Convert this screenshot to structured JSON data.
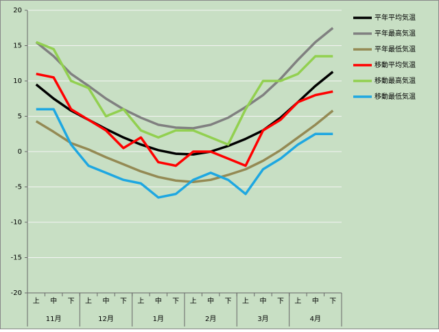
{
  "chart_data": {
    "type": "line",
    "categories": [
      "上",
      "中",
      "下",
      "上",
      "中",
      "下",
      "上",
      "中",
      "下",
      "上",
      "中",
      "下",
      "上",
      "中",
      "下",
      "上",
      "中",
      "下"
    ],
    "groups": [
      "11月",
      "12月",
      "1月",
      "2月",
      "3月",
      "4月"
    ],
    "ylim": [
      -20,
      20
    ],
    "yticks": [
      -20,
      -15,
      -10,
      -5,
      0,
      5,
      10,
      15,
      20
    ],
    "grid": true,
    "legend": "right",
    "series": [
      {
        "name": "平年平均気温",
        "color": "#000000",
        "values": [
          9.5,
          7.5,
          5.8,
          4.5,
          3.2,
          2.0,
          1.0,
          0.2,
          -0.3,
          -0.4,
          0.0,
          0.8,
          1.8,
          3.0,
          4.8,
          7.0,
          9.3,
          11.3
        ]
      },
      {
        "name": "平年最高気温",
        "color": "#808080",
        "values": [
          15.5,
          13.5,
          11.0,
          9.3,
          7.5,
          6.0,
          4.8,
          3.8,
          3.4,
          3.3,
          3.8,
          4.8,
          6.3,
          8.0,
          10.3,
          13.0,
          15.5,
          17.5
        ]
      },
      {
        "name": "平年最低気温",
        "color": "#948a54",
        "values": [
          4.3,
          2.8,
          1.2,
          0.3,
          -0.8,
          -1.8,
          -2.8,
          -3.6,
          -4.1,
          -4.3,
          -4.0,
          -3.3,
          -2.5,
          -1.3,
          0.2,
          2.0,
          3.8,
          5.8
        ]
      },
      {
        "name": "移動平均気温",
        "color": "#ff0000",
        "values": [
          11,
          10.5,
          6,
          4.5,
          3,
          0.5,
          2,
          -1.5,
          -2,
          0,
          0,
          -1,
          -2,
          3,
          4.5,
          7,
          8,
          8.5
        ]
      },
      {
        "name": "移動最高気温",
        "color": "#92d050",
        "values": [
          15.5,
          14.5,
          10,
          9,
          5,
          6,
          3,
          2,
          3,
          3,
          2,
          1,
          6,
          10,
          10,
          11,
          13.5,
          13.5
        ]
      },
      {
        "name": "移動最低気温",
        "color": "#1ea7e1",
        "values": [
          6,
          6,
          1,
          -2,
          -3,
          -4,
          -4.5,
          -6.5,
          -6,
          -4,
          -3,
          -4,
          -6,
          -2.5,
          -1,
          1,
          2.5,
          2.5
        ]
      }
    ]
  }
}
